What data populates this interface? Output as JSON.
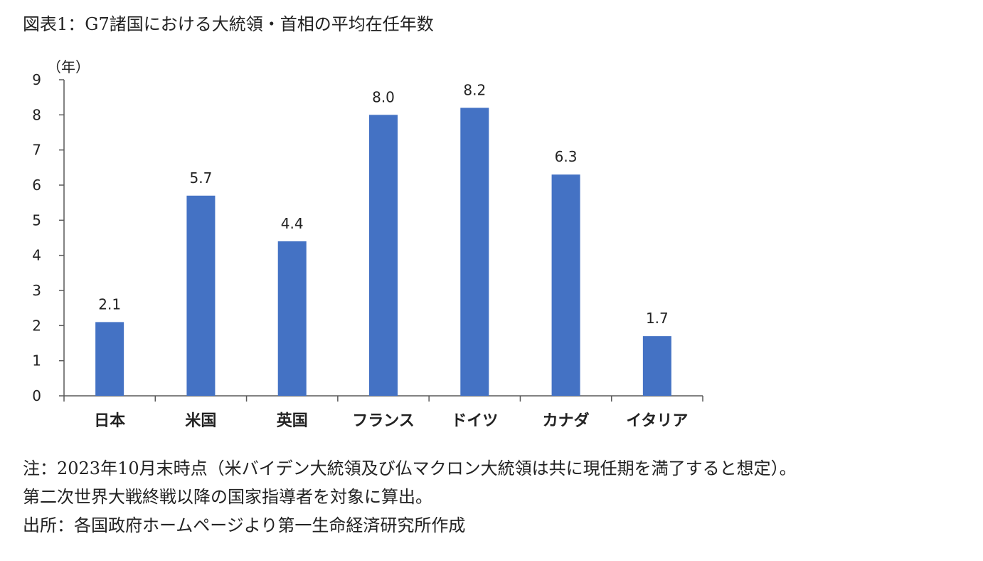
{
  "title": "図表1：G7諸国における大統領・首相の平均在任年数",
  "chart_data": {
    "type": "bar",
    "y_unit_label": "（年）",
    "categories": [
      "日本",
      "米国",
      "英国",
      "フランス",
      "ドイツ",
      "カナダ",
      "イタリア"
    ],
    "values": [
      2.1,
      5.7,
      4.4,
      8.0,
      8.2,
      6.3,
      1.7
    ],
    "data_labels": [
      "2.1",
      "5.7",
      "4.4",
      "8.0",
      "8.2",
      "6.3",
      "1.7"
    ],
    "y_ticks": [
      "0",
      "1",
      "2",
      "3",
      "4",
      "5",
      "6",
      "7",
      "8",
      "9"
    ],
    "ylim": [
      0,
      9
    ],
    "grid": false,
    "bar_color": "#4472C4"
  },
  "notes": [
    "注：2023年10月末時点（米バイデン大統領及び仏マクロン大統領は共に現任期を満了すると想定）。",
    "第二次世界大戦終戦以降の国家指導者を対象に算出。",
    "出所：各国政府ホームページより第一生命経済研究所作成"
  ]
}
